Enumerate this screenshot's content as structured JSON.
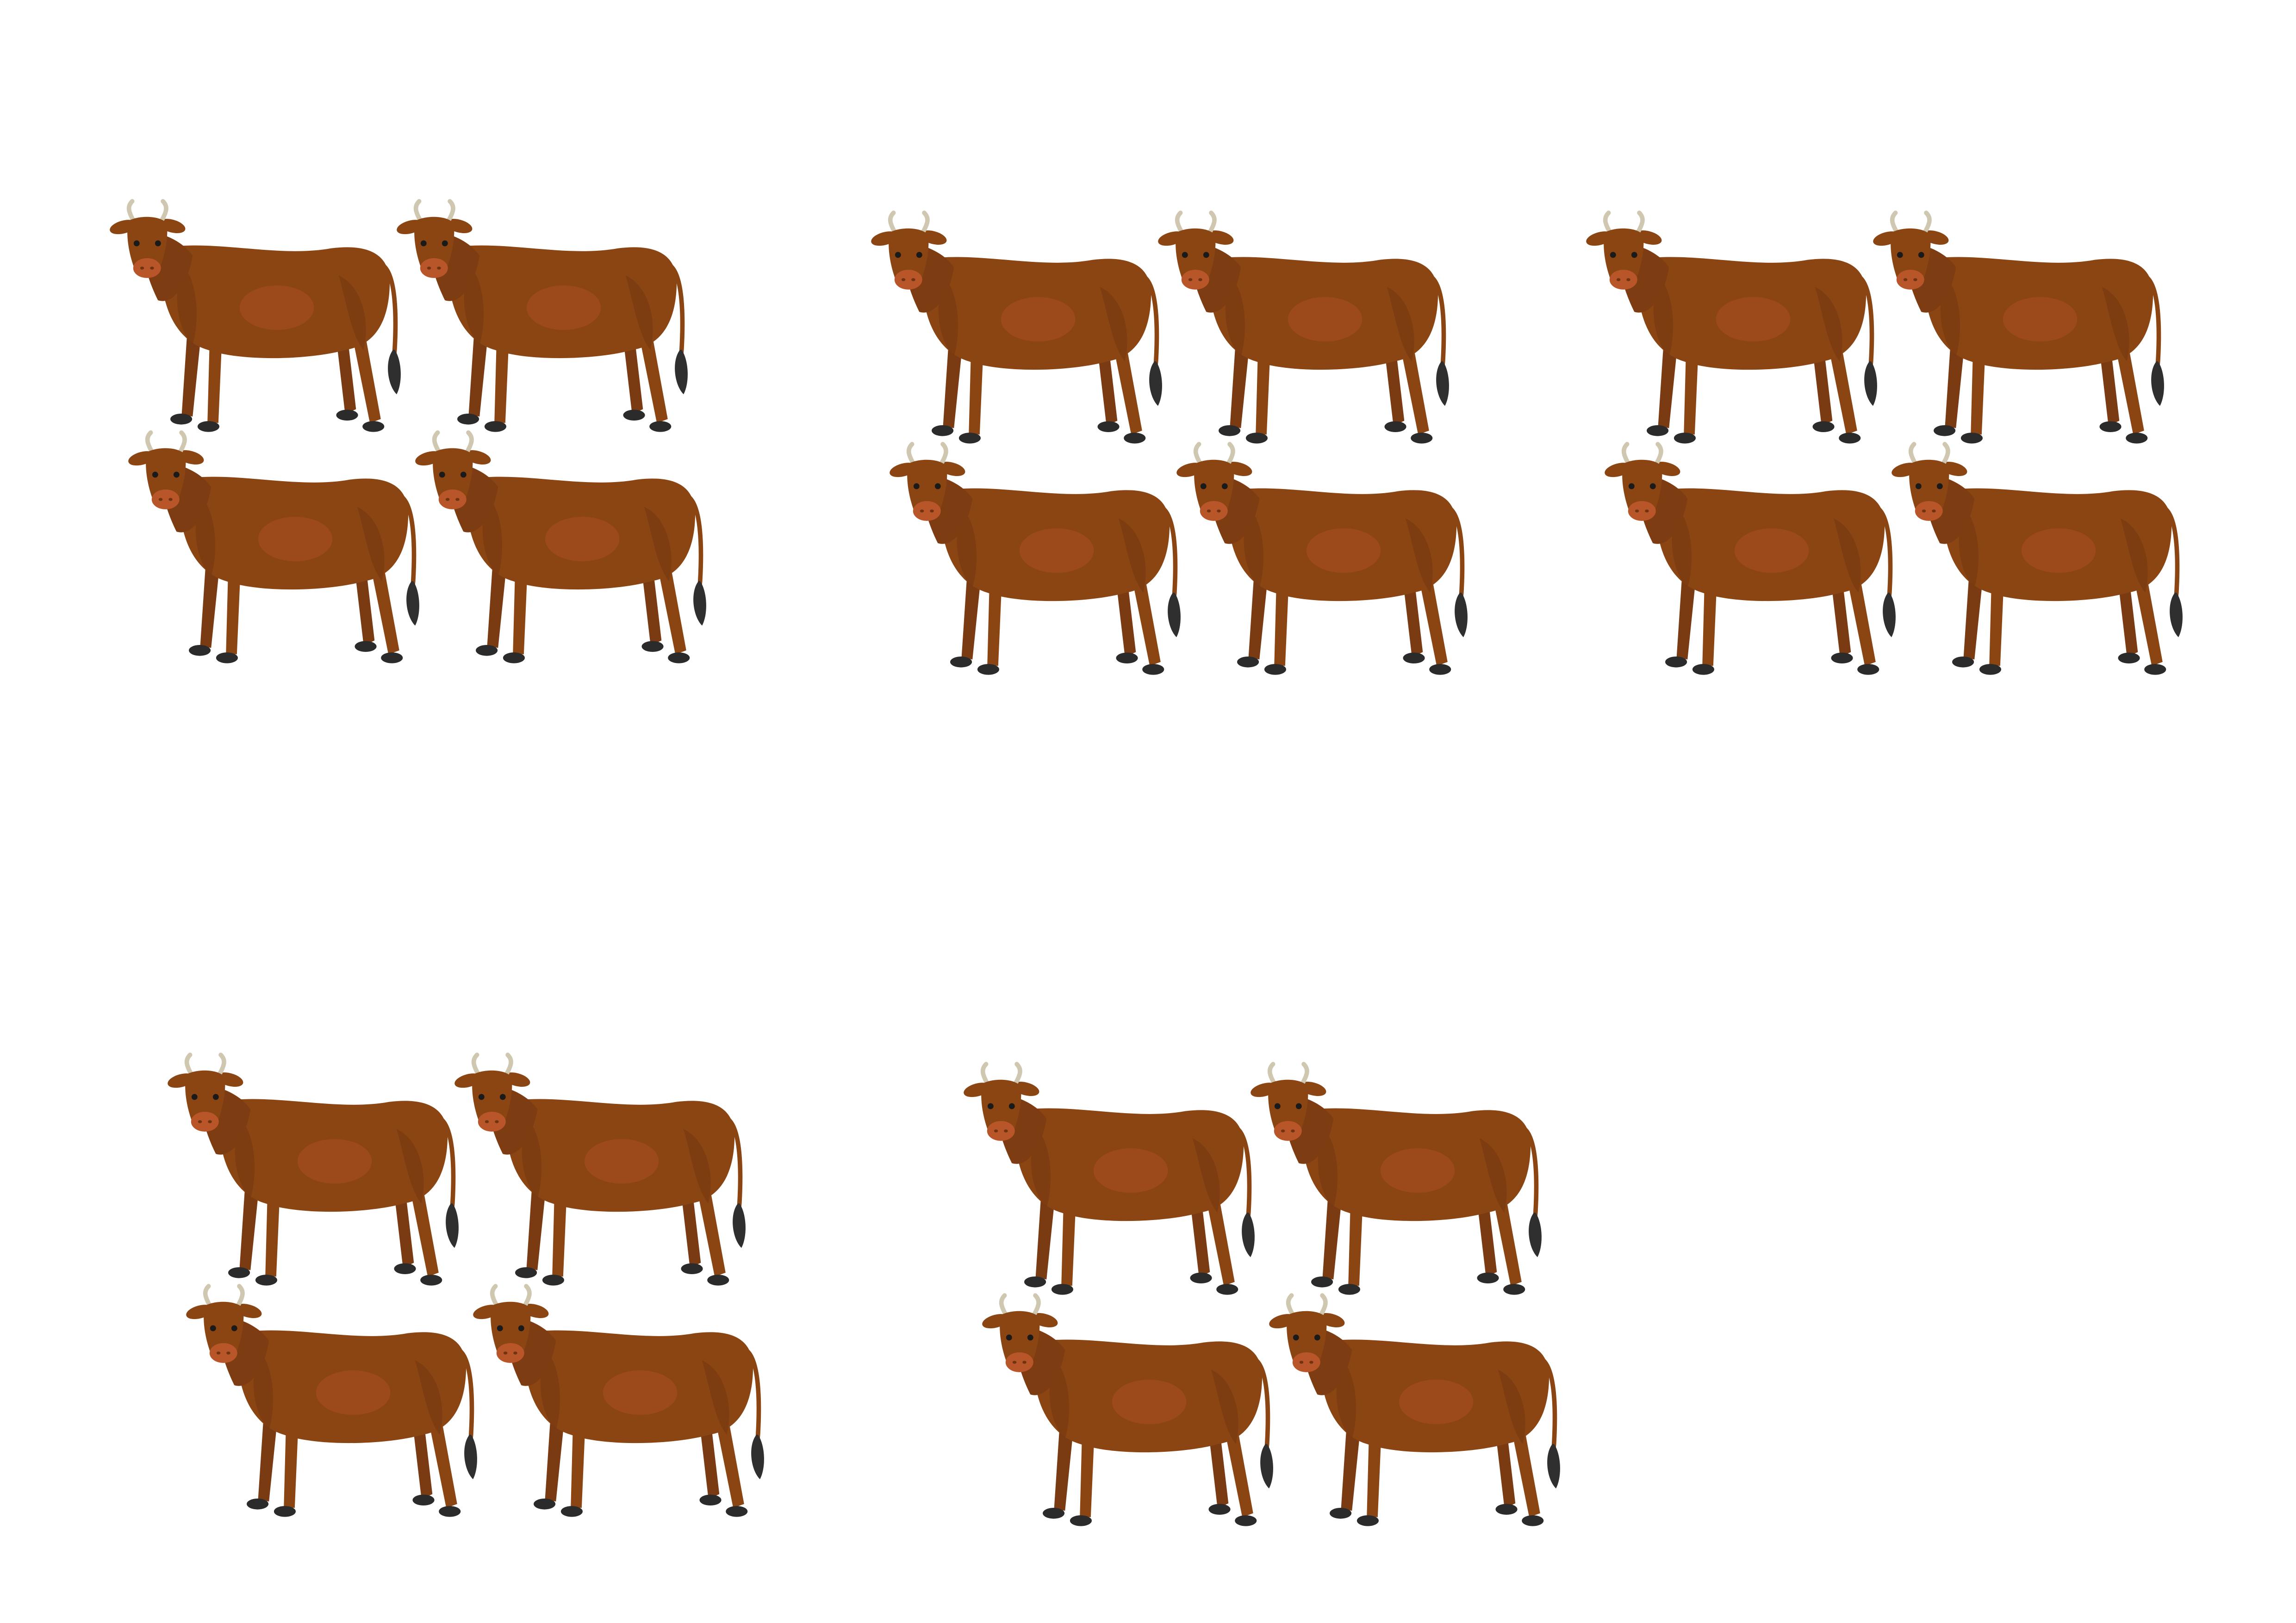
{
  "page": {
    "background": "#ffffff"
  },
  "palette": {
    "body": "#8B4513",
    "body_dark": "#6E3410",
    "body_light": "#A0522D",
    "belly_patch": "#9C4A1C",
    "hoof": "#2B2B2B",
    "tail_tip": "#2F2F2F",
    "horn": "#CFC7B0",
    "snout": "#B8562A",
    "eye": "#1A1A1A"
  },
  "icon": "cow-icon",
  "groups": [
    {
      "name": "cow-group-1",
      "count": 4
    },
    {
      "name": "cow-group-2",
      "count": 4
    },
    {
      "name": "cow-group-3",
      "count": 4
    },
    {
      "name": "cow-group-4",
      "count": 4
    },
    {
      "name": "cow-group-5",
      "count": 4
    }
  ]
}
